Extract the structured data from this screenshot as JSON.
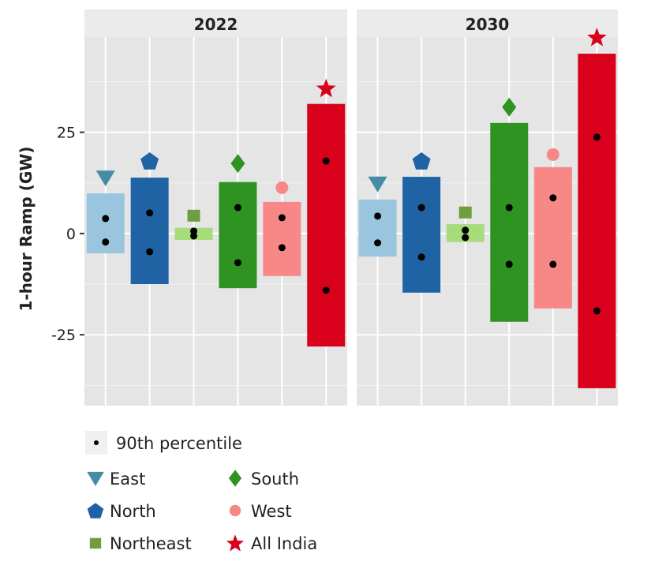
{
  "chart_data": {
    "type": "bar",
    "ylabel": "1-hour Ramp (GW)",
    "ylim": [
      -42.5,
      48.5
    ],
    "yticks": [
      -25,
      0,
      25
    ],
    "ytick_labels": [
      "-25",
      "0",
      "25"
    ],
    "grid": true,
    "legend_position": "bottom",
    "categories": [
      "East",
      "North",
      "Northeast",
      "South",
      "West",
      "All India"
    ],
    "colors": {
      "East": {
        "bar": "#9ac5de",
        "marker": "#468ca6",
        "shape": "triangle-down"
      },
      "North": {
        "bar": "#1f63a5",
        "marker": "#1f63a5",
        "shape": "pentagon"
      },
      "Northeast": {
        "bar": "#a6dc7a",
        "marker": "#6e9e40",
        "shape": "square"
      },
      "South": {
        "bar": "#2e9321",
        "marker": "#2e9321",
        "shape": "diamond"
      },
      "West": {
        "bar": "#f88888",
        "marker": "#f88888",
        "shape": "circle"
      },
      "All India": {
        "bar": "#d9001b",
        "marker": "#d9001b",
        "shape": "star"
      }
    },
    "panels": [
      {
        "title": "2022",
        "series": [
          {
            "category": "East",
            "bar_range": [
              -4.9,
              9.9
            ],
            "p90": [
              3.7,
              -2.1
            ],
            "marker": 13.8
          },
          {
            "category": "North",
            "bar_range": [
              -12.5,
              13.8
            ],
            "p90": [
              5.1,
              -4.5
            ],
            "marker": 17.9
          },
          {
            "category": "Northeast",
            "bar_range": [
              -1.6,
              1.4
            ],
            "p90": [
              0.6,
              -0.6
            ],
            "marker": 4.5
          },
          {
            "category": "South",
            "bar_range": [
              -13.5,
              12.7
            ],
            "p90": [
              6.4,
              -7.2
            ],
            "marker": 17.3
          },
          {
            "category": "West",
            "bar_range": [
              -10.5,
              7.8
            ],
            "p90": [
              3.9,
              -3.5
            ],
            "marker": 11.3
          },
          {
            "category": "All India",
            "bar_range": [
              -27.9,
              32.0
            ],
            "p90": [
              17.9,
              -14.0
            ],
            "marker": 35.9
          }
        ]
      },
      {
        "title": "2030",
        "series": [
          {
            "category": "East",
            "bar_range": [
              -5.7,
              8.4
            ],
            "p90": [
              4.3,
              -2.3
            ],
            "marker": 12.3
          },
          {
            "category": "North",
            "bar_range": [
              -14.6,
              14.0
            ],
            "p90": [
              6.4,
              -5.8
            ],
            "marker": 17.9
          },
          {
            "category": "Northeast",
            "bar_range": [
              -2.1,
              2.3
            ],
            "p90": [
              0.8,
              -1.0
            ],
            "marker": 5.3
          },
          {
            "category": "South",
            "bar_range": [
              -21.8,
              27.3
            ],
            "p90": [
              6.4,
              -7.6
            ],
            "marker": 31.2
          },
          {
            "category": "West",
            "bar_range": [
              -18.5,
              16.4
            ],
            "p90": [
              8.8,
              -7.6
            ],
            "marker": 19.5
          },
          {
            "category": "All India",
            "bar_range": [
              -38.2,
              44.4
            ],
            "p90": [
              23.8,
              -19.1
            ],
            "marker": 48.5
          }
        ]
      }
    ],
    "legend": {
      "percentile_label": "90th percentile",
      "items": [
        "East",
        "North",
        "Northeast",
        "South",
        "West",
        "All India"
      ]
    }
  }
}
